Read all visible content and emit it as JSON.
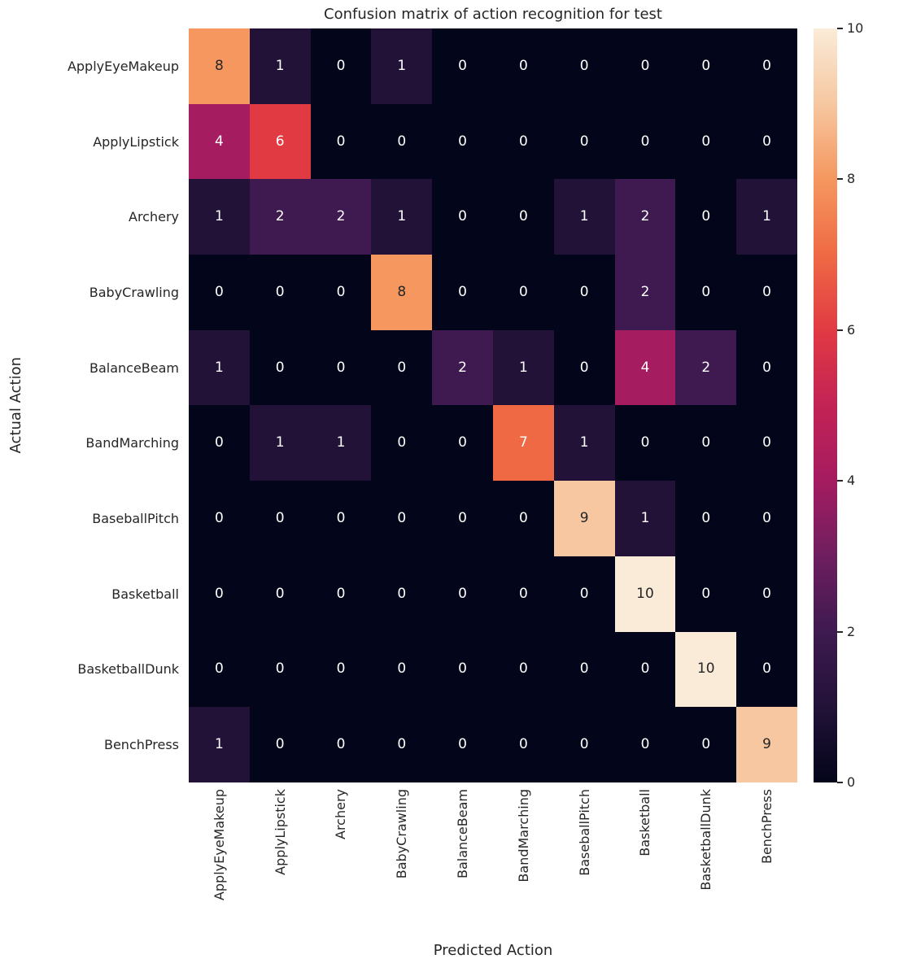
{
  "chart_data": {
    "type": "heatmap",
    "title": "Confusion matrix of action recognition for test",
    "xlabel": "Predicted Action",
    "ylabel": "Actual Action",
    "x_categories": [
      "ApplyEyeMakeup",
      "ApplyLipstick",
      "Archery",
      "BabyCrawling",
      "BalanceBeam",
      "BandMarching",
      "BaseballPitch",
      "Basketball",
      "BasketballDunk",
      "BenchPress"
    ],
    "y_categories": [
      "ApplyEyeMakeup",
      "ApplyLipstick",
      "Archery",
      "BabyCrawling",
      "BalanceBeam",
      "BandMarching",
      "BaseballPitch",
      "Basketball",
      "BasketballDunk",
      "BenchPress"
    ],
    "matrix": [
      [
        8,
        1,
        0,
        1,
        0,
        0,
        0,
        0,
        0,
        0
      ],
      [
        4,
        6,
        0,
        0,
        0,
        0,
        0,
        0,
        0,
        0
      ],
      [
        1,
        2,
        2,
        1,
        0,
        0,
        1,
        2,
        0,
        1
      ],
      [
        0,
        0,
        0,
        8,
        0,
        0,
        0,
        2,
        0,
        0
      ],
      [
        1,
        0,
        0,
        0,
        2,
        1,
        0,
        4,
        2,
        0
      ],
      [
        0,
        1,
        1,
        0,
        0,
        7,
        1,
        0,
        0,
        0
      ],
      [
        0,
        0,
        0,
        0,
        0,
        0,
        9,
        1,
        0,
        0
      ],
      [
        0,
        0,
        0,
        0,
        0,
        0,
        0,
        10,
        0,
        0
      ],
      [
        0,
        0,
        0,
        0,
        0,
        0,
        0,
        0,
        10,
        0
      ],
      [
        1,
        0,
        0,
        0,
        0,
        0,
        0,
        0,
        0,
        9
      ]
    ],
    "vmin": 0,
    "vmax": 10,
    "colorbar_ticks": [
      0,
      2,
      4,
      6,
      8,
      10
    ],
    "legend_position": "right-colorbar",
    "grid": false,
    "colormap": {
      "name": "rocket",
      "stops": [
        {
          "t": 0.0,
          "color": "#03051A"
        },
        {
          "t": 0.1,
          "color": "#221238"
        },
        {
          "t": 0.2,
          "color": "#3E1A50"
        },
        {
          "t": 0.3,
          "color": "#6E1E5F"
        },
        {
          "t": 0.4,
          "color": "#A51C60"
        },
        {
          "t": 0.5,
          "color": "#C32355"
        },
        {
          "t": 0.6,
          "color": "#E13A43"
        },
        {
          "t": 0.7,
          "color": "#EF6A44"
        },
        {
          "t": 0.8,
          "color": "#F5975F"
        },
        {
          "t": 0.9,
          "color": "#F6C7A0"
        },
        {
          "t": 1.0,
          "color": "#FAEBD8"
        }
      ]
    },
    "annotation_text_colors": {
      "dark": "#262626",
      "light": "#FFFFFF"
    },
    "axis_text_color": "#262626",
    "background_color": "#FFFFFF"
  }
}
